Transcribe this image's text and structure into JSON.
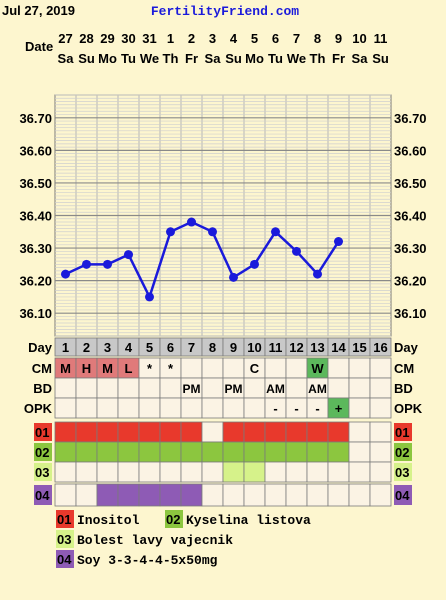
{
  "header": {
    "date": "Jul 27, 2019",
    "site": "FertilityFriend.com"
  },
  "row_labels": {
    "date": "Date",
    "day": "Day",
    "cm": "CM",
    "bd": "BD",
    "opk": "OPK"
  },
  "columns": [
    {
      "date": "27",
      "dow": "Sa",
      "day": "1",
      "temp": 36.22,
      "cm": "M",
      "bd": "",
      "opk": "",
      "r1": true,
      "r2": true,
      "r3": false,
      "r4": false
    },
    {
      "date": "28",
      "dow": "Su",
      "day": "2",
      "temp": 36.25,
      "cm": "H",
      "bd": "",
      "opk": "",
      "r1": true,
      "r2": true,
      "r3": false,
      "r4": false
    },
    {
      "date": "29",
      "dow": "Mo",
      "day": "3",
      "temp": 36.25,
      "cm": "M",
      "bd": "",
      "opk": "",
      "r1": true,
      "r2": true,
      "r3": false,
      "r4": true
    },
    {
      "date": "30",
      "dow": "Tu",
      "day": "4",
      "temp": 36.28,
      "cm": "L",
      "bd": "",
      "opk": "",
      "r1": true,
      "r2": true,
      "r3": false,
      "r4": true
    },
    {
      "date": "31",
      "dow": "We",
      "day": "5",
      "temp": 36.15,
      "cm": "*",
      "bd": "",
      "opk": "",
      "r1": true,
      "r2": true,
      "r3": false,
      "r4": true
    },
    {
      "date": "1",
      "dow": "Th",
      "day": "6",
      "temp": 36.35,
      "cm": "*",
      "bd": "",
      "opk": "",
      "r1": true,
      "r2": true,
      "r3": false,
      "r4": true
    },
    {
      "date": "2",
      "dow": "Fr",
      "day": "7",
      "temp": 36.38,
      "cm": "",
      "bd": "PM",
      "opk": "",
      "r1": true,
      "r2": true,
      "r3": false,
      "r4": true
    },
    {
      "date": "3",
      "dow": "Sa",
      "day": "8",
      "temp": 36.35,
      "cm": "",
      "bd": "",
      "opk": "",
      "r1": false,
      "r2": true,
      "r3": false,
      "r4": false
    },
    {
      "date": "4",
      "dow": "Su",
      "day": "9",
      "temp": 36.21,
      "cm": "",
      "bd": "PM",
      "opk": "",
      "r1": true,
      "r2": true,
      "r3": true,
      "r4": false
    },
    {
      "date": "5",
      "dow": "Mo",
      "day": "10",
      "temp": 36.25,
      "cm": "C",
      "bd": "",
      "opk": "",
      "r1": true,
      "r2": true,
      "r3": true,
      "r4": false
    },
    {
      "date": "6",
      "dow": "Tu",
      "day": "11",
      "temp": 36.35,
      "cm": "",
      "bd": "AM",
      "opk": "-",
      "r1": true,
      "r2": true,
      "r3": false,
      "r4": false
    },
    {
      "date": "7",
      "dow": "We",
      "day": "12",
      "temp": 36.29,
      "cm": "",
      "bd": "",
      "opk": "-",
      "r1": true,
      "r2": true,
      "r3": false,
      "r4": false
    },
    {
      "date": "8",
      "dow": "Th",
      "day": "13",
      "temp": 36.22,
      "cm": "W",
      "bd": "AM",
      "opk": "-",
      "r1": true,
      "r2": true,
      "r3": false,
      "r4": false
    },
    {
      "date": "9",
      "dow": "Fr",
      "day": "14",
      "temp": 36.32,
      "cm": "",
      "bd": "",
      "opk": "+",
      "r1": true,
      "r2": true,
      "r3": false,
      "r4": false
    },
    {
      "date": "10",
      "dow": "Sa",
      "day": "15",
      "temp": null,
      "cm": "",
      "bd": "",
      "opk": "",
      "r1": false,
      "r2": false,
      "r3": false,
      "r4": false
    },
    {
      "date": "11",
      "dow": "Su",
      "day": "16",
      "temp": null,
      "cm": "",
      "bd": "",
      "opk": "",
      "r1": false,
      "r2": false,
      "r3": false,
      "r4": false
    }
  ],
  "custom_rows": [
    {
      "code": "01",
      "color": "#e8392c"
    },
    {
      "code": "02",
      "color": "#8cc63f"
    },
    {
      "code": "03",
      "color": "#d6f28a"
    },
    {
      "code": "04",
      "color": "#8e5bb5"
    }
  ],
  "legend": [
    {
      "code": "01",
      "label": "Inositol",
      "color": "#e8392c"
    },
    {
      "code": "02",
      "label": "Kyselina listova",
      "color": "#8cc63f"
    },
    {
      "code": "03",
      "label": "Bolest lavy vajecnik",
      "color": "#d6f28a"
    },
    {
      "code": "04",
      "label": "Soy 3-3-4-4-5x50mg",
      "color": "#8e5bb5"
    }
  ],
  "colors": {
    "line": "#1a1adb",
    "cm_highlight": "#e07a7a",
    "cm_w": "#5cb85c",
    "opk_plus": "#5cb85c",
    "cell": "#fbf3e4",
    "grid": "#7a7a7a"
  },
  "chart_data": {
    "type": "line",
    "title": "",
    "xlabel": "Day",
    "ylabel": "",
    "x": [
      1,
      2,
      3,
      4,
      5,
      6,
      7,
      8,
      9,
      10,
      11,
      12,
      13,
      14
    ],
    "series": [
      {
        "values": [
          36.22,
          36.25,
          36.25,
          36.28,
          36.15,
          36.35,
          36.38,
          36.35,
          36.21,
          36.25,
          36.35,
          36.29,
          36.22,
          36.32
        ]
      }
    ],
    "yticks": [
      36.1,
      36.2,
      36.3,
      36.4,
      36.5,
      36.6,
      36.7
    ],
    "ylim": [
      36.03,
      36.77
    ],
    "grid": true,
    "legend": "none"
  }
}
